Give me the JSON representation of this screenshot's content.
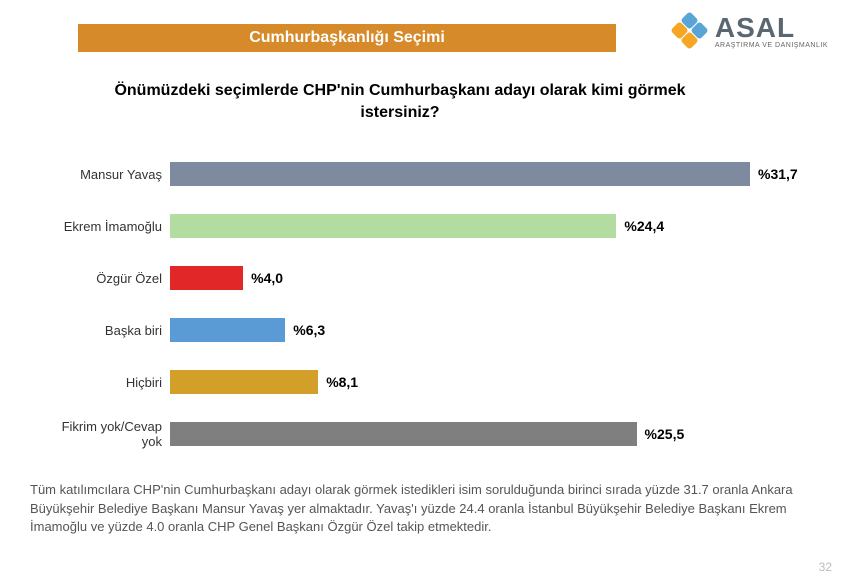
{
  "header": {
    "title": "Cumhurbaşkanlığı Seçimi",
    "bg_color": "#d68a2a",
    "text_color": "#ffffff"
  },
  "logo": {
    "main": "ASAL",
    "sub": "ARAŞTIRMA VE DANIŞMANLIK",
    "main_color": "#5a6770",
    "diamond_colors": [
      "#5aa5d6",
      "#f5a623",
      "#5aa5d6",
      "#f5a623"
    ]
  },
  "question": "Önümüzdeki seçimlerde CHP'nin Cumhurbaşkanı adayı olarak kimi görmek istersiniz?",
  "chart": {
    "type": "bar",
    "max_value": 31.7,
    "bar_area_width": 640,
    "label_color": "#333333",
    "value_color": "#000000",
    "items": [
      {
        "label": "Mansur Yavaş",
        "value": 31.7,
        "display": "%31,7",
        "color": "#7e8aa0"
      },
      {
        "label": "Ekrem İmamoğlu",
        "value": 24.4,
        "display": "%24,4",
        "color": "#b3dca0"
      },
      {
        "label": "Özgür Özel",
        "value": 4.0,
        "display": "%4,0",
        "color": "#e12727"
      },
      {
        "label": "Başka biri",
        "value": 6.3,
        "display": "%6,3",
        "color": "#5a9bd5"
      },
      {
        "label": "Hiçbiri",
        "value": 8.1,
        "display": "%8,1",
        "color": "#d2a028"
      },
      {
        "label": "Fikrim yok/Cevap yok",
        "value": 25.5,
        "display": "%25,5",
        "color": "#7f7f7f"
      }
    ]
  },
  "footnote": "Tüm katılımcılara CHP'nin Cumhurbaşkanı adayı olarak görmek istedikleri isim sorulduğunda birinci sırada yüzde 31.7 oranla Ankara Büyükşehir Belediye Başkanı Mansur Yavaş yer almaktadır. Yavaş'ı yüzde 24.4 oranla İstanbul Büyükşehir Belediye Başkanı Ekrem İmamoğlu ve yüzde 4.0 oranla CHP Genel Başkanı Özgür Özel takip etmektedir.",
  "page_number": "32"
}
